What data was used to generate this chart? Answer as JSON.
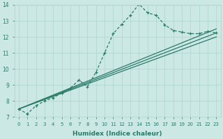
{
  "xlabel": "Humidex (Indice chaleur)",
  "xlim": [
    -0.5,
    23.5
  ],
  "ylim": [
    7,
    14
  ],
  "yticks": [
    7,
    8,
    9,
    10,
    11,
    12,
    13,
    14
  ],
  "xticks": [
    0,
    1,
    2,
    3,
    4,
    5,
    6,
    7,
    8,
    9,
    10,
    11,
    12,
    13,
    14,
    15,
    16,
    17,
    18,
    19,
    20,
    21,
    22,
    23
  ],
  "bg_color": "#cce8e4",
  "grid_color": "#aad4cc",
  "line_color": "#2a7a6a",
  "lines": [
    {
      "x": [
        0,
        1,
        2,
        3,
        4,
        5,
        6,
        7,
        8,
        9,
        10,
        11,
        12,
        13,
        14,
        15,
        16,
        17,
        18,
        19,
        20,
        21,
        22,
        23
      ],
      "y": [
        7.5,
        7.2,
        7.7,
        8.0,
        8.2,
        8.5,
        8.8,
        9.3,
        8.9,
        9.8,
        11.0,
        12.2,
        12.8,
        13.35,
        14.05,
        13.5,
        13.35,
        12.75,
        12.4,
        12.3,
        12.2,
        12.2,
        12.35,
        12.25
      ],
      "markers": true,
      "linewidth": 0.9
    },
    {
      "x": [
        0,
        23
      ],
      "y": [
        7.5,
        12.5
      ],
      "markers": false,
      "linewidth": 0.9
    },
    {
      "x": [
        0,
        23
      ],
      "y": [
        7.5,
        12.25
      ],
      "markers": false,
      "linewidth": 0.9
    },
    {
      "x": [
        0,
        23
      ],
      "y": [
        7.5,
        12.0
      ],
      "markers": false,
      "linewidth": 0.9
    }
  ]
}
